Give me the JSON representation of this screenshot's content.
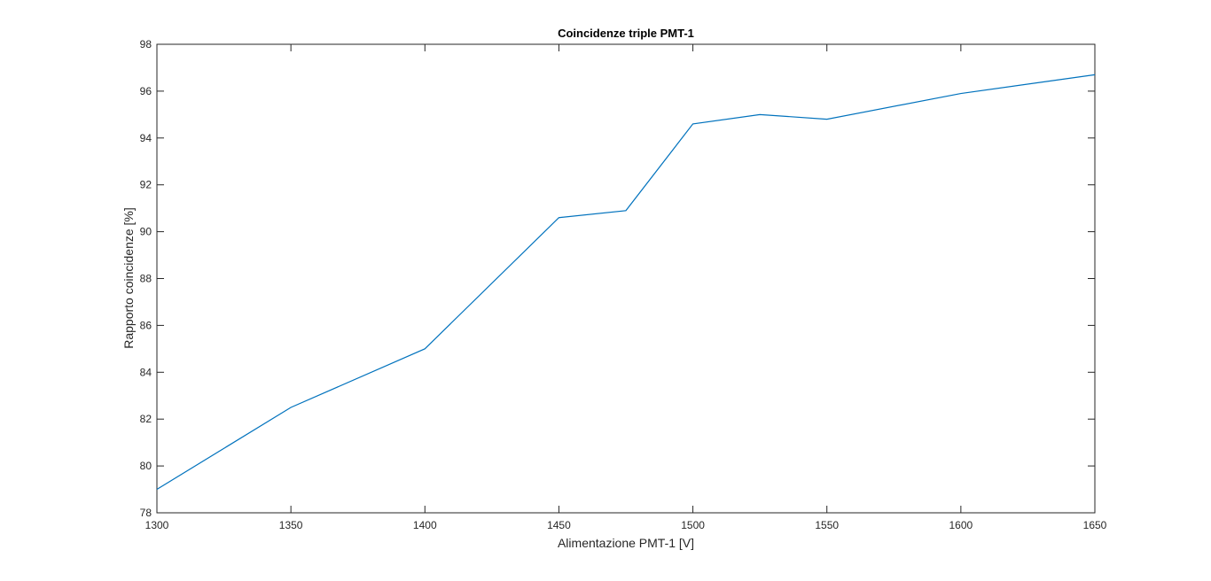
{
  "chart_data": {
    "type": "line",
    "title": "Coincidenze triple PMT-1",
    "xlabel": "Alimentazione PMT-1 [V]",
    "ylabel": "Rapporto coincidenze [%]",
    "xlim": [
      1300,
      1650
    ],
    "ylim": [
      78,
      98
    ],
    "xticks": [
      1300,
      1350,
      1400,
      1450,
      1500,
      1550,
      1600,
      1650
    ],
    "yticks": [
      78,
      80,
      82,
      84,
      86,
      88,
      90,
      92,
      94,
      96,
      98
    ],
    "grid": false,
    "legend": "none",
    "series": [
      {
        "color": "#0072BD",
        "x": [
          1300,
          1350,
          1400,
          1450,
          1475,
          1500,
          1525,
          1550,
          1600,
          1650
        ],
        "y": [
          79.0,
          82.5,
          85.0,
          90.6,
          90.9,
          94.6,
          95.0,
          94.8,
          95.9,
          96.7
        ]
      }
    ]
  }
}
